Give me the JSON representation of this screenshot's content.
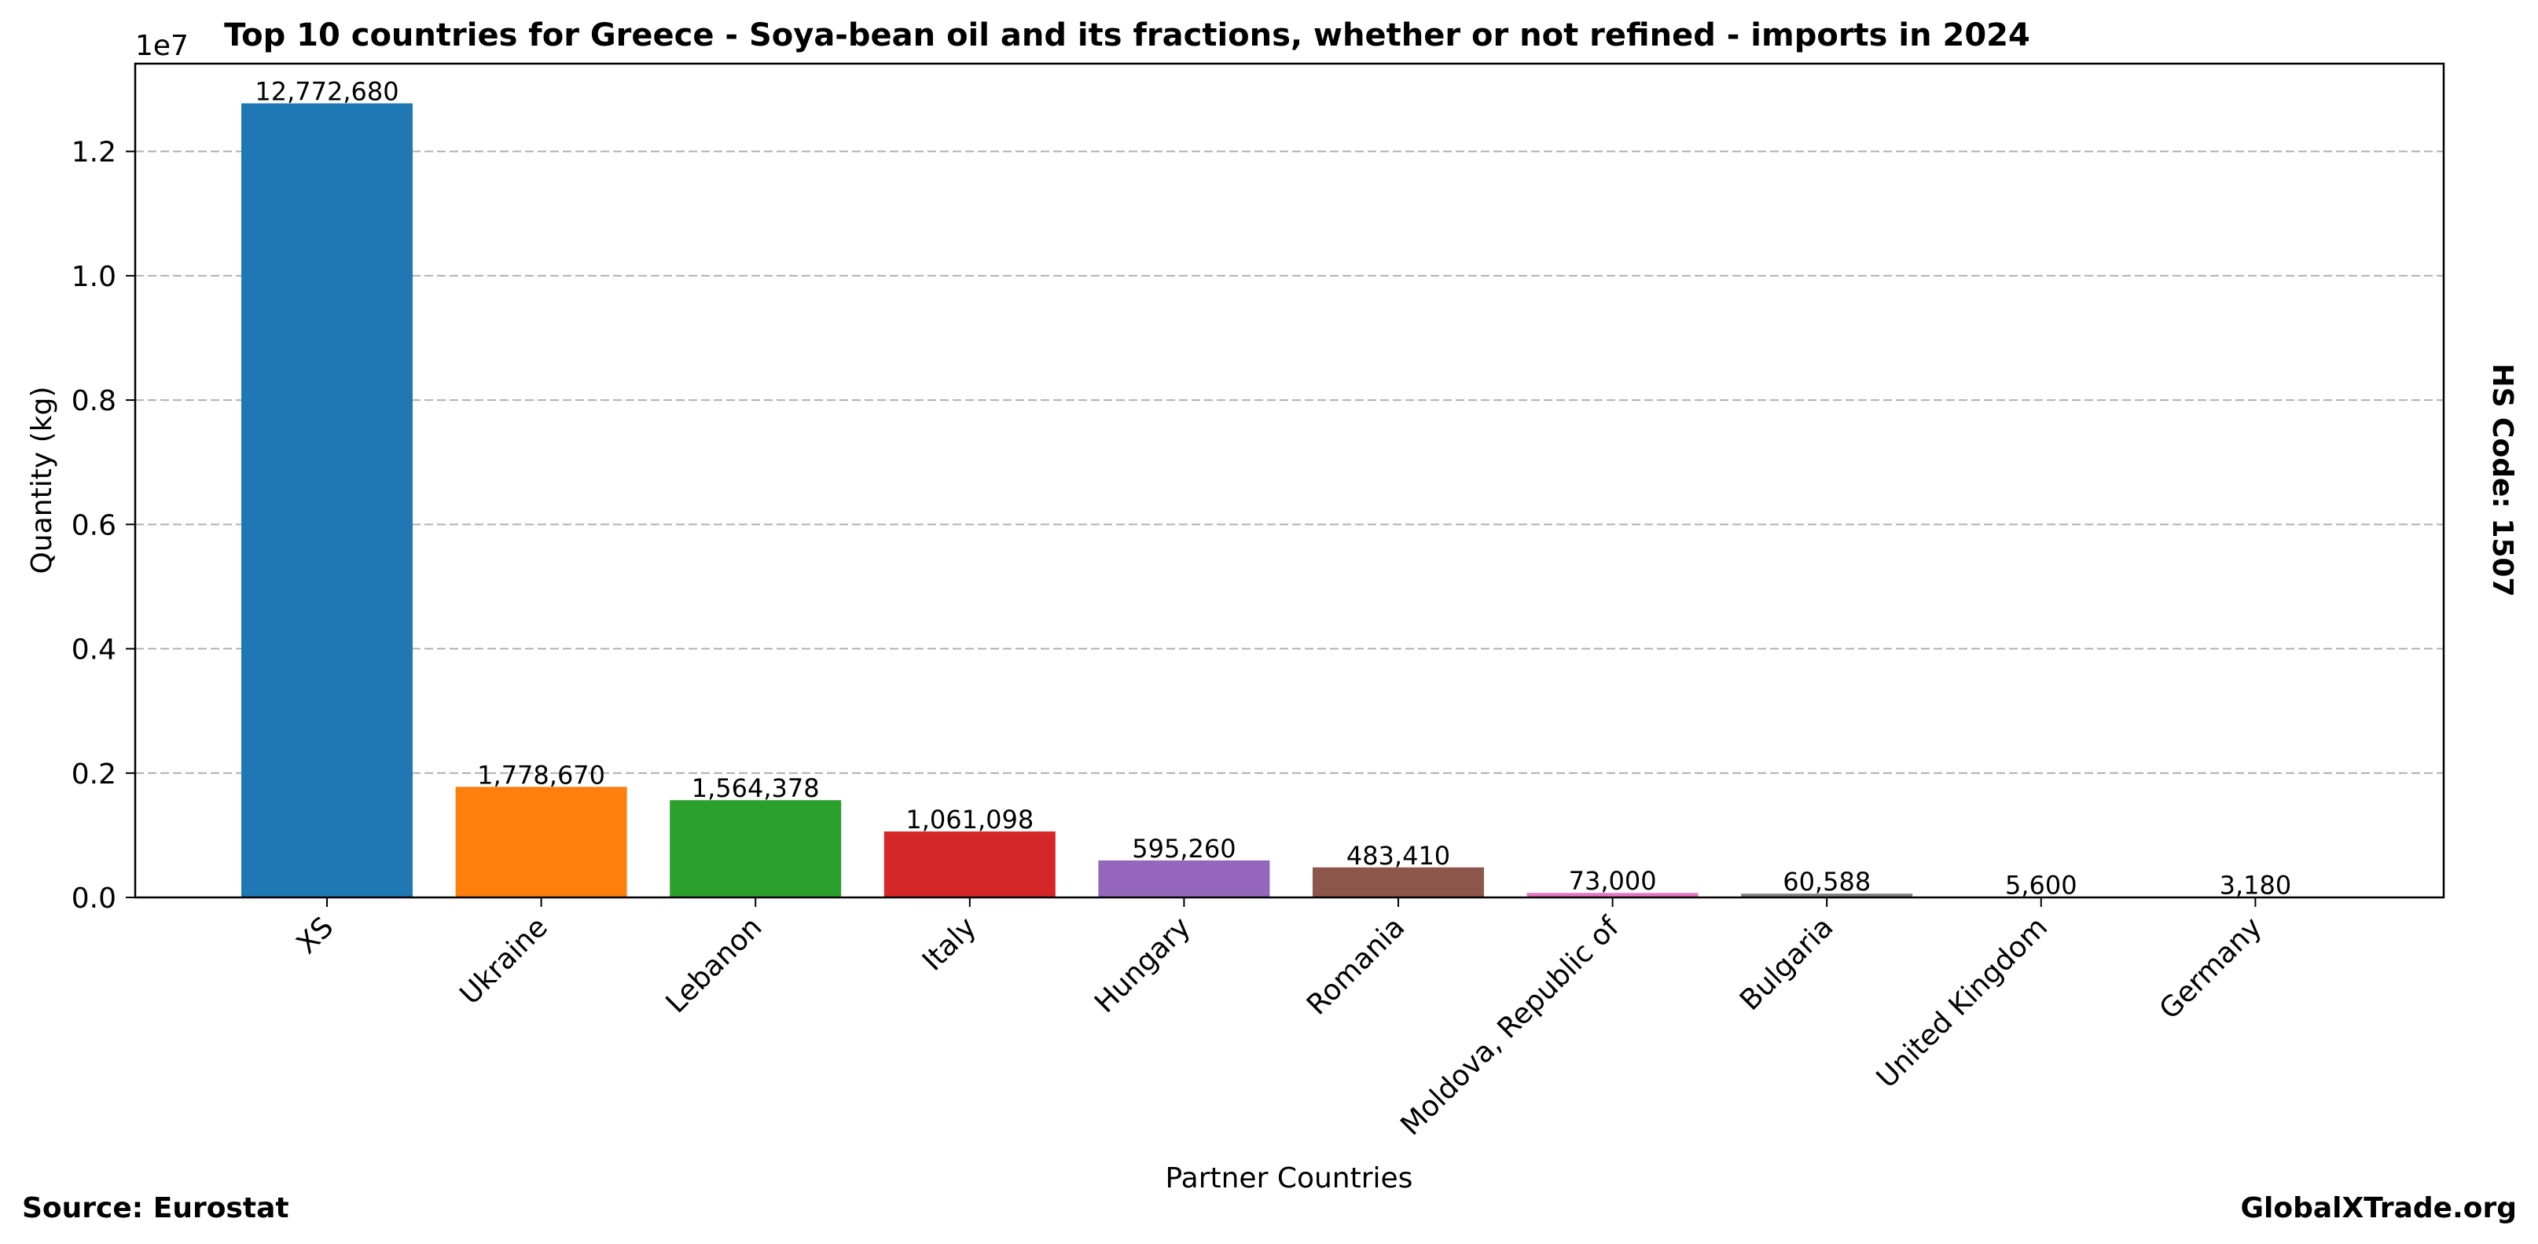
{
  "chart_data": {
    "type": "bar",
    "title": "Top 10 countries for Greece - Soya-bean oil and its fractions, whether or not refined - imports in 2024",
    "xlabel": "Partner Countries",
    "ylabel": "Quantity (kg)",
    "y_multiplier_label": "1e7",
    "categories": [
      "XS",
      "Ukraine",
      "Lebanon",
      "Italy",
      "Hungary",
      "Romania",
      "Moldova, Republic of",
      "Bulgaria",
      "United Kingdom",
      "Germany"
    ],
    "values": [
      12772680,
      1778670,
      1564378,
      1061098,
      595260,
      483410,
      73000,
      60588,
      5600,
      3180
    ],
    "data_labels": [
      "12,772,680",
      "1,778,670",
      "1,564,378",
      "1,061,098",
      "595,260",
      "483,410",
      "73,000",
      "60,588",
      "5,600",
      "3,180"
    ],
    "bar_colors": [
      "#1f77b4",
      "#ff7f0e",
      "#2ca02c",
      "#d62728",
      "#9467bd",
      "#8c564b",
      "#e377c2",
      "#7f7f7f",
      "#bcbd22",
      "#17becf"
    ],
    "ylim": [
      0,
      13411314
    ],
    "yticks": [
      0,
      2000000,
      4000000,
      6000000,
      8000000,
      10000000,
      12000000
    ],
    "ytick_labels": [
      "0.0",
      "0.2",
      "0.4",
      "0.6",
      "0.8",
      "1.0",
      "1.2"
    ],
    "grid": "y-dashed",
    "legend": "none"
  },
  "side_label": "HS Code: 1507",
  "footer": {
    "source": "Source: Eurostat",
    "brand": "GlobalXTrade.org"
  }
}
